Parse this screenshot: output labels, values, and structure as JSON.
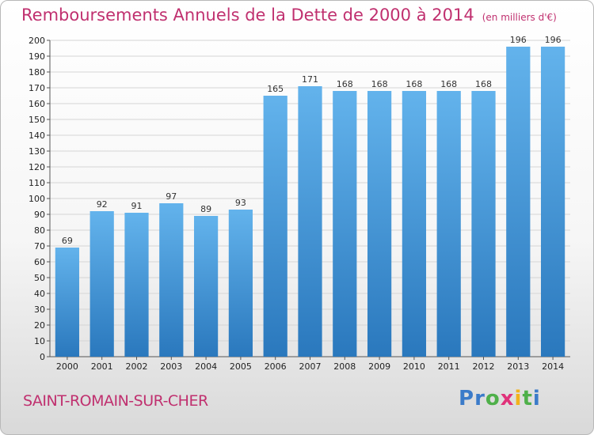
{
  "header": {
    "title": "Remboursements Annuels de la Dette de 2000 à 2014",
    "unit": "(en milliers d'€)"
  },
  "footer": {
    "city": "SAINT-ROMAIN-SUR-CHER",
    "logo_letters": [
      "P",
      "r",
      "o",
      "x",
      "i",
      "t",
      "i"
    ],
    "logo_colors": [
      "#3b7bc9",
      "#3b7bc9",
      "#4fb04a",
      "#e0327a",
      "#f2b21b",
      "#4fb04a",
      "#3b7bc9"
    ]
  },
  "colors": {
    "bar_top": "#63b3ec",
    "bar_bottom": "#2a78bd",
    "grid": "#d5d5d5",
    "accent": "#c0306f"
  },
  "chart_data": {
    "type": "bar",
    "categories": [
      "2000",
      "2001",
      "2002",
      "2003",
      "2004",
      "2005",
      "2006",
      "2007",
      "2008",
      "2009",
      "2010",
      "2011",
      "2012",
      "2013",
      "2014"
    ],
    "values": [
      69,
      92,
      91,
      97,
      89,
      93,
      165,
      171,
      168,
      168,
      168,
      168,
      168,
      196,
      196
    ],
    "title": "Remboursements Annuels de la Dette de 2000 à 2014",
    "xlabel": "",
    "ylabel": "",
    "ylim": [
      0,
      200
    ],
    "yticks": [
      0,
      10,
      20,
      30,
      40,
      50,
      60,
      70,
      80,
      90,
      100,
      110,
      120,
      130,
      140,
      150,
      160,
      170,
      180,
      190,
      200
    ],
    "grid": true
  }
}
